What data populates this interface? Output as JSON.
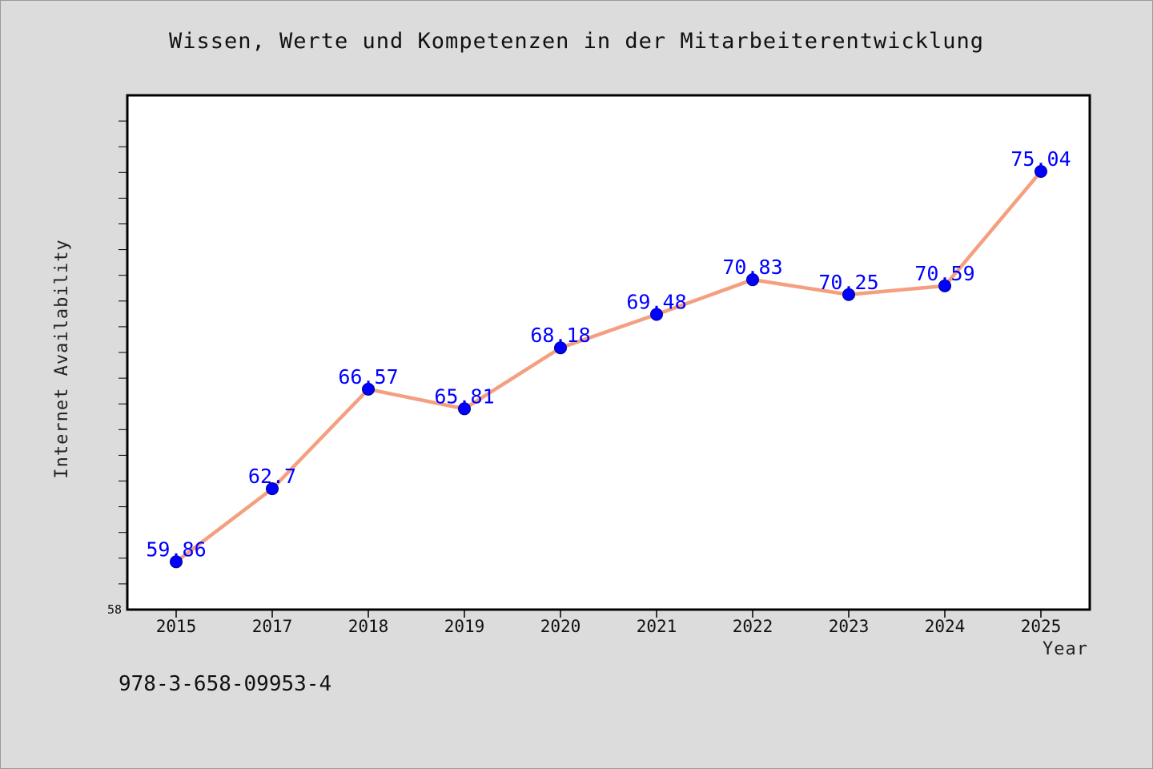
{
  "chart_data": {
    "type": "line",
    "title": "Wissen, Werte und Kompetenzen in der Mitarbeiterentwicklung",
    "xlabel": "Year",
    "ylabel": "Internet Availability",
    "categories": [
      "2015",
      "2017",
      "2018",
      "2019",
      "2020",
      "2021",
      "2022",
      "2023",
      "2024",
      "2025"
    ],
    "series": [
      {
        "values": [
          59.86,
          62.7,
          66.57,
          65.81,
          68.18,
          69.48,
          70.83,
          70.25,
          70.59,
          75.04
        ],
        "data_labels": [
          "59.86",
          "62.7",
          "66.57",
          "65.81",
          "68.18",
          "69.48",
          "70.83",
          "70.25",
          "70.59",
          "75.04"
        ]
      }
    ],
    "ylim": [
      58,
      78
    ],
    "y_tick_label": "58",
    "line_color": "#f4a080",
    "marker_color": "#0000ff",
    "grid": false
  },
  "footnote": "978-3-658-09953-4"
}
